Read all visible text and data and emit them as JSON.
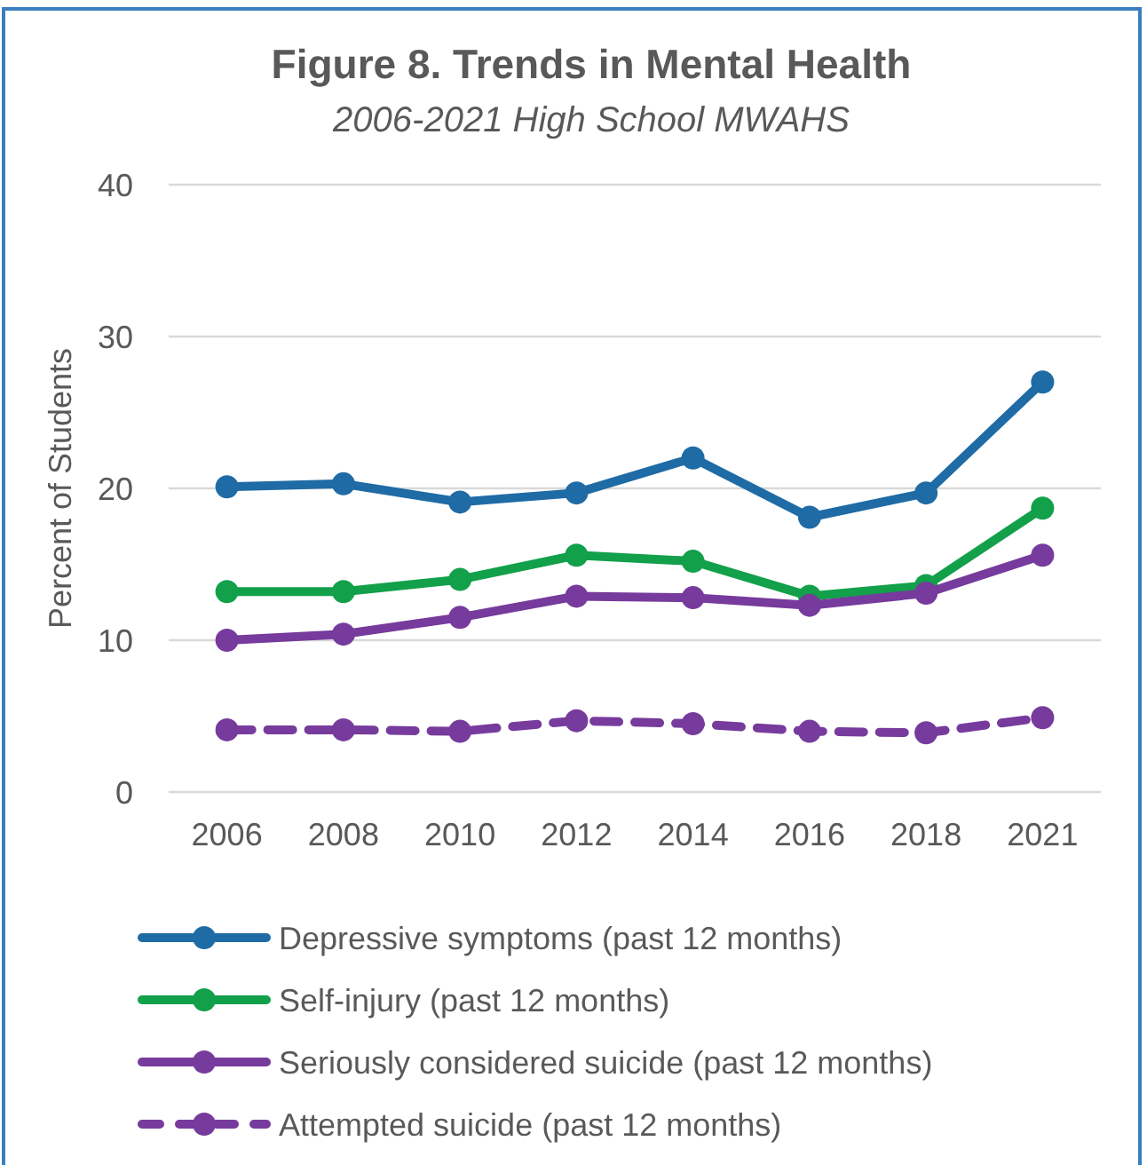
{
  "chart_data": {
    "type": "line",
    "title": "Figure 8. Trends in Mental Health",
    "subtitle": "2006-2021 High School MWAHS",
    "ylabel": "Percent of Students",
    "categories": [
      "2006",
      "2008",
      "2010",
      "2012",
      "2014",
      "2016",
      "2018",
      "2021"
    ],
    "series": [
      {
        "name": "Depressive symptoms (past 12 months)",
        "color": "#1f6ba5",
        "values": [
          20.1,
          20.3,
          19.1,
          19.7,
          22.0,
          18.1,
          19.7,
          27.0
        ]
      },
      {
        "name": "Self-injury (past 12 months)",
        "color": "#12a04a",
        "values": [
          13.2,
          13.2,
          14.0,
          15.6,
          15.2,
          12.9,
          13.6,
          18.7
        ]
      },
      {
        "name": "Seriously considered suicide (past 12 months)",
        "color": "#763b9c",
        "values": [
          10.0,
          10.4,
          11.5,
          12.9,
          12.8,
          12.3,
          13.1,
          15.6
        ]
      },
      {
        "name": "Attempted suicide (past 12 months)",
        "color": "#763b9c",
        "values": [
          4.1,
          4.1,
          4.0,
          4.7,
          4.5,
          4.0,
          3.9,
          4.9
        ],
        "line_style": "dashed"
      }
    ],
    "ylim": [
      0,
      40
    ],
    "yticks": [
      0,
      10,
      20,
      30,
      40
    ],
    "grid": "y",
    "legend": "bottom",
    "marker": "circle",
    "line_style": "solid"
  }
}
